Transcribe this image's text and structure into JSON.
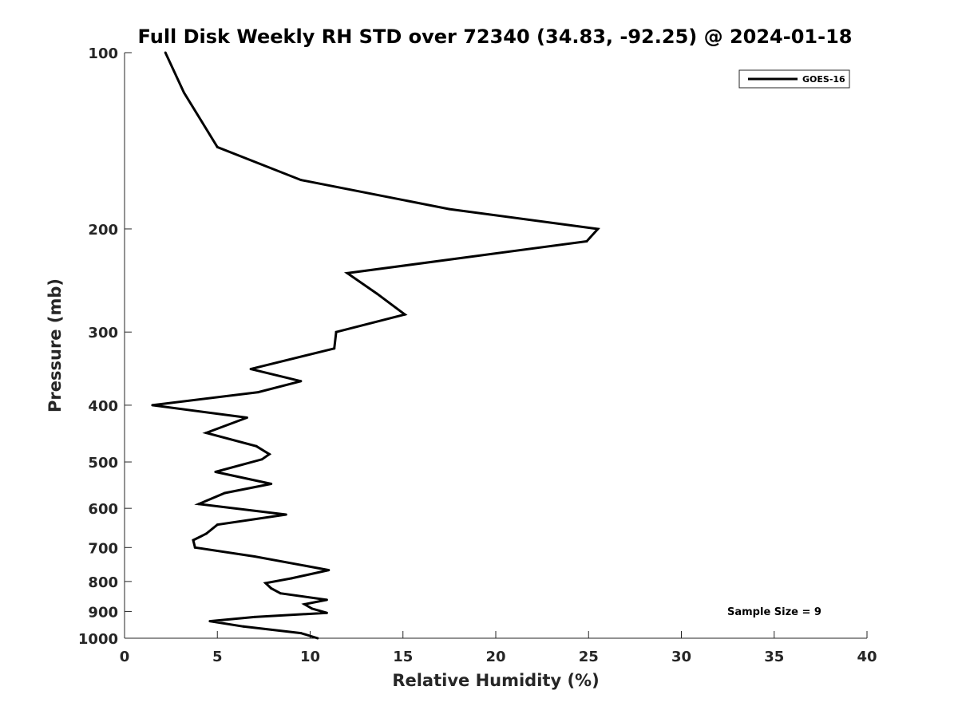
{
  "chart_data": {
    "type": "line",
    "title": "Full Disk Weekly RH STD over 72340 (34.83, -92.25) @ 2024-01-18",
    "xlabel": "Relative Humidity (%)",
    "ylabel": "Pressure (mb)",
    "xlim": [
      0,
      40
    ],
    "ylim": [
      1000,
      100
    ],
    "y_scale": "log",
    "y_reversed": true,
    "x_ticks": [
      0,
      5,
      10,
      15,
      20,
      25,
      30,
      35,
      40
    ],
    "y_ticks": [
      100,
      200,
      300,
      400,
      500,
      600,
      700,
      800,
      900,
      1000
    ],
    "grid": false,
    "legend_position": "top-right",
    "series": [
      {
        "name": "GOES-16",
        "color": "#000000",
        "x": [
          2.2,
          3.2,
          5.0,
          9.5,
          17.5,
          25.5,
          24.9,
          12.0,
          13.6,
          15.1,
          11.4,
          11.3,
          6.8,
          9.5,
          7.2,
          1.5,
          6.6,
          4.4,
          7.1,
          7.8,
          7.4,
          4.9,
          7.9,
          5.4,
          4.0,
          8.7,
          5.0,
          4.4,
          3.7,
          3.8,
          7.0,
          11.0,
          9.0,
          7.6,
          7.9,
          8.4,
          10.9,
          9.7,
          10.1,
          10.9,
          7.0,
          4.6,
          6.4,
          9.5,
          10.4
        ],
        "y": [
          100,
          117,
          145,
          165,
          185,
          200,
          210,
          238,
          258,
          280,
          300,
          320,
          347,
          364,
          380,
          400,
          420,
          446,
          470,
          485,
          495,
          520,
          545,
          565,
          590,
          615,
          640,
          663,
          680,
          700,
          725,
          765,
          790,
          805,
          822,
          838,
          860,
          875,
          890,
          905,
          920,
          935,
          955,
          980,
          1000
        ]
      }
    ],
    "annotations": [
      "Sample Size = 9"
    ]
  }
}
